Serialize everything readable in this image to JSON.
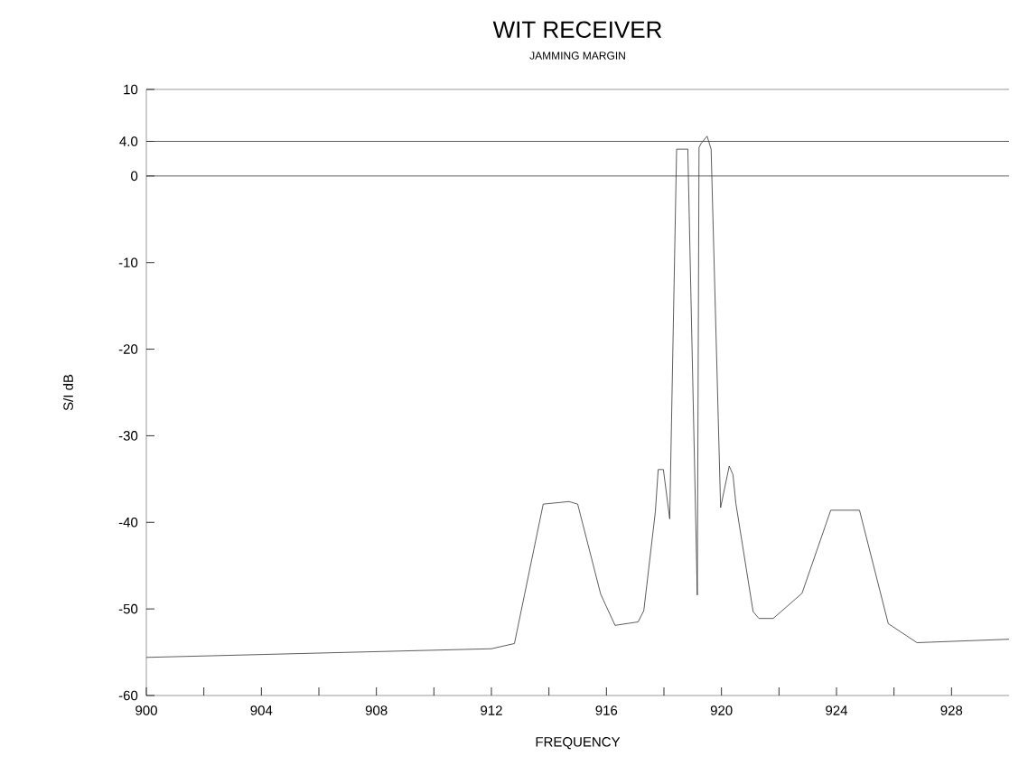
{
  "chart_data": {
    "type": "line",
    "title": "WIT RECEIVER",
    "subtitle": "JAMMING MARGIN",
    "xlabel": "FREQUENCY",
    "ylabel": "S/I dB",
    "xlim": [
      900,
      930
    ],
    "ylim": [
      -60,
      10
    ],
    "xticks": [
      900,
      {
        "value": 902,
        "label": null
      },
      904,
      {
        "value": 906,
        "label": null
      },
      908,
      {
        "value": 910,
        "label": null
      },
      912,
      {
        "value": 914,
        "label": null
      },
      916,
      {
        "value": 918,
        "label": null
      },
      920,
      {
        "value": 922,
        "label": null
      },
      924,
      {
        "value": 926,
        "label": null
      },
      928
    ],
    "yticks": [
      -60,
      -50,
      -40,
      -30,
      -20,
      -10,
      0,
      {
        "value": 4,
        "label": "4.0"
      },
      10
    ],
    "ref_lines": [
      {
        "axis": "y",
        "value": 4
      },
      {
        "axis": "y",
        "value": 0
      }
    ],
    "marker": "none",
    "line_style": "solid",
    "series": [
      {
        "color": "#333333",
        "x": [
          900,
          912,
          912.8,
          913.8,
          914.7,
          915,
          915.8,
          916.3,
          917.1,
          917.3,
          917.7,
          917.8,
          917.98,
          918.2,
          918.44,
          918.83,
          919.16,
          919.22,
          919.3,
          919.5,
          919.64,
          919.97,
          920.27,
          920.4,
          920.5,
          921.1,
          921.3,
          921.8,
          922.8,
          923.8,
          924.8,
          925.8,
          926.8,
          930
        ],
        "values": [
          -55.6,
          -54.6,
          -54,
          -37.9,
          -37.6,
          -37.9,
          -48.3,
          -51.9,
          -51.5,
          -50.2,
          -38.8,
          -33.9,
          -33.9,
          -39.6,
          3.1,
          3.1,
          -48.4,
          3.3,
          3.8,
          4.6,
          3.1,
          -38.3,
          -33.5,
          -34.5,
          -37.8,
          -50.3,
          -51.1,
          -51.1,
          -48.2,
          -38.6,
          -38.6,
          -51.7,
          -53.9,
          -53.5
        ]
      }
    ]
  }
}
